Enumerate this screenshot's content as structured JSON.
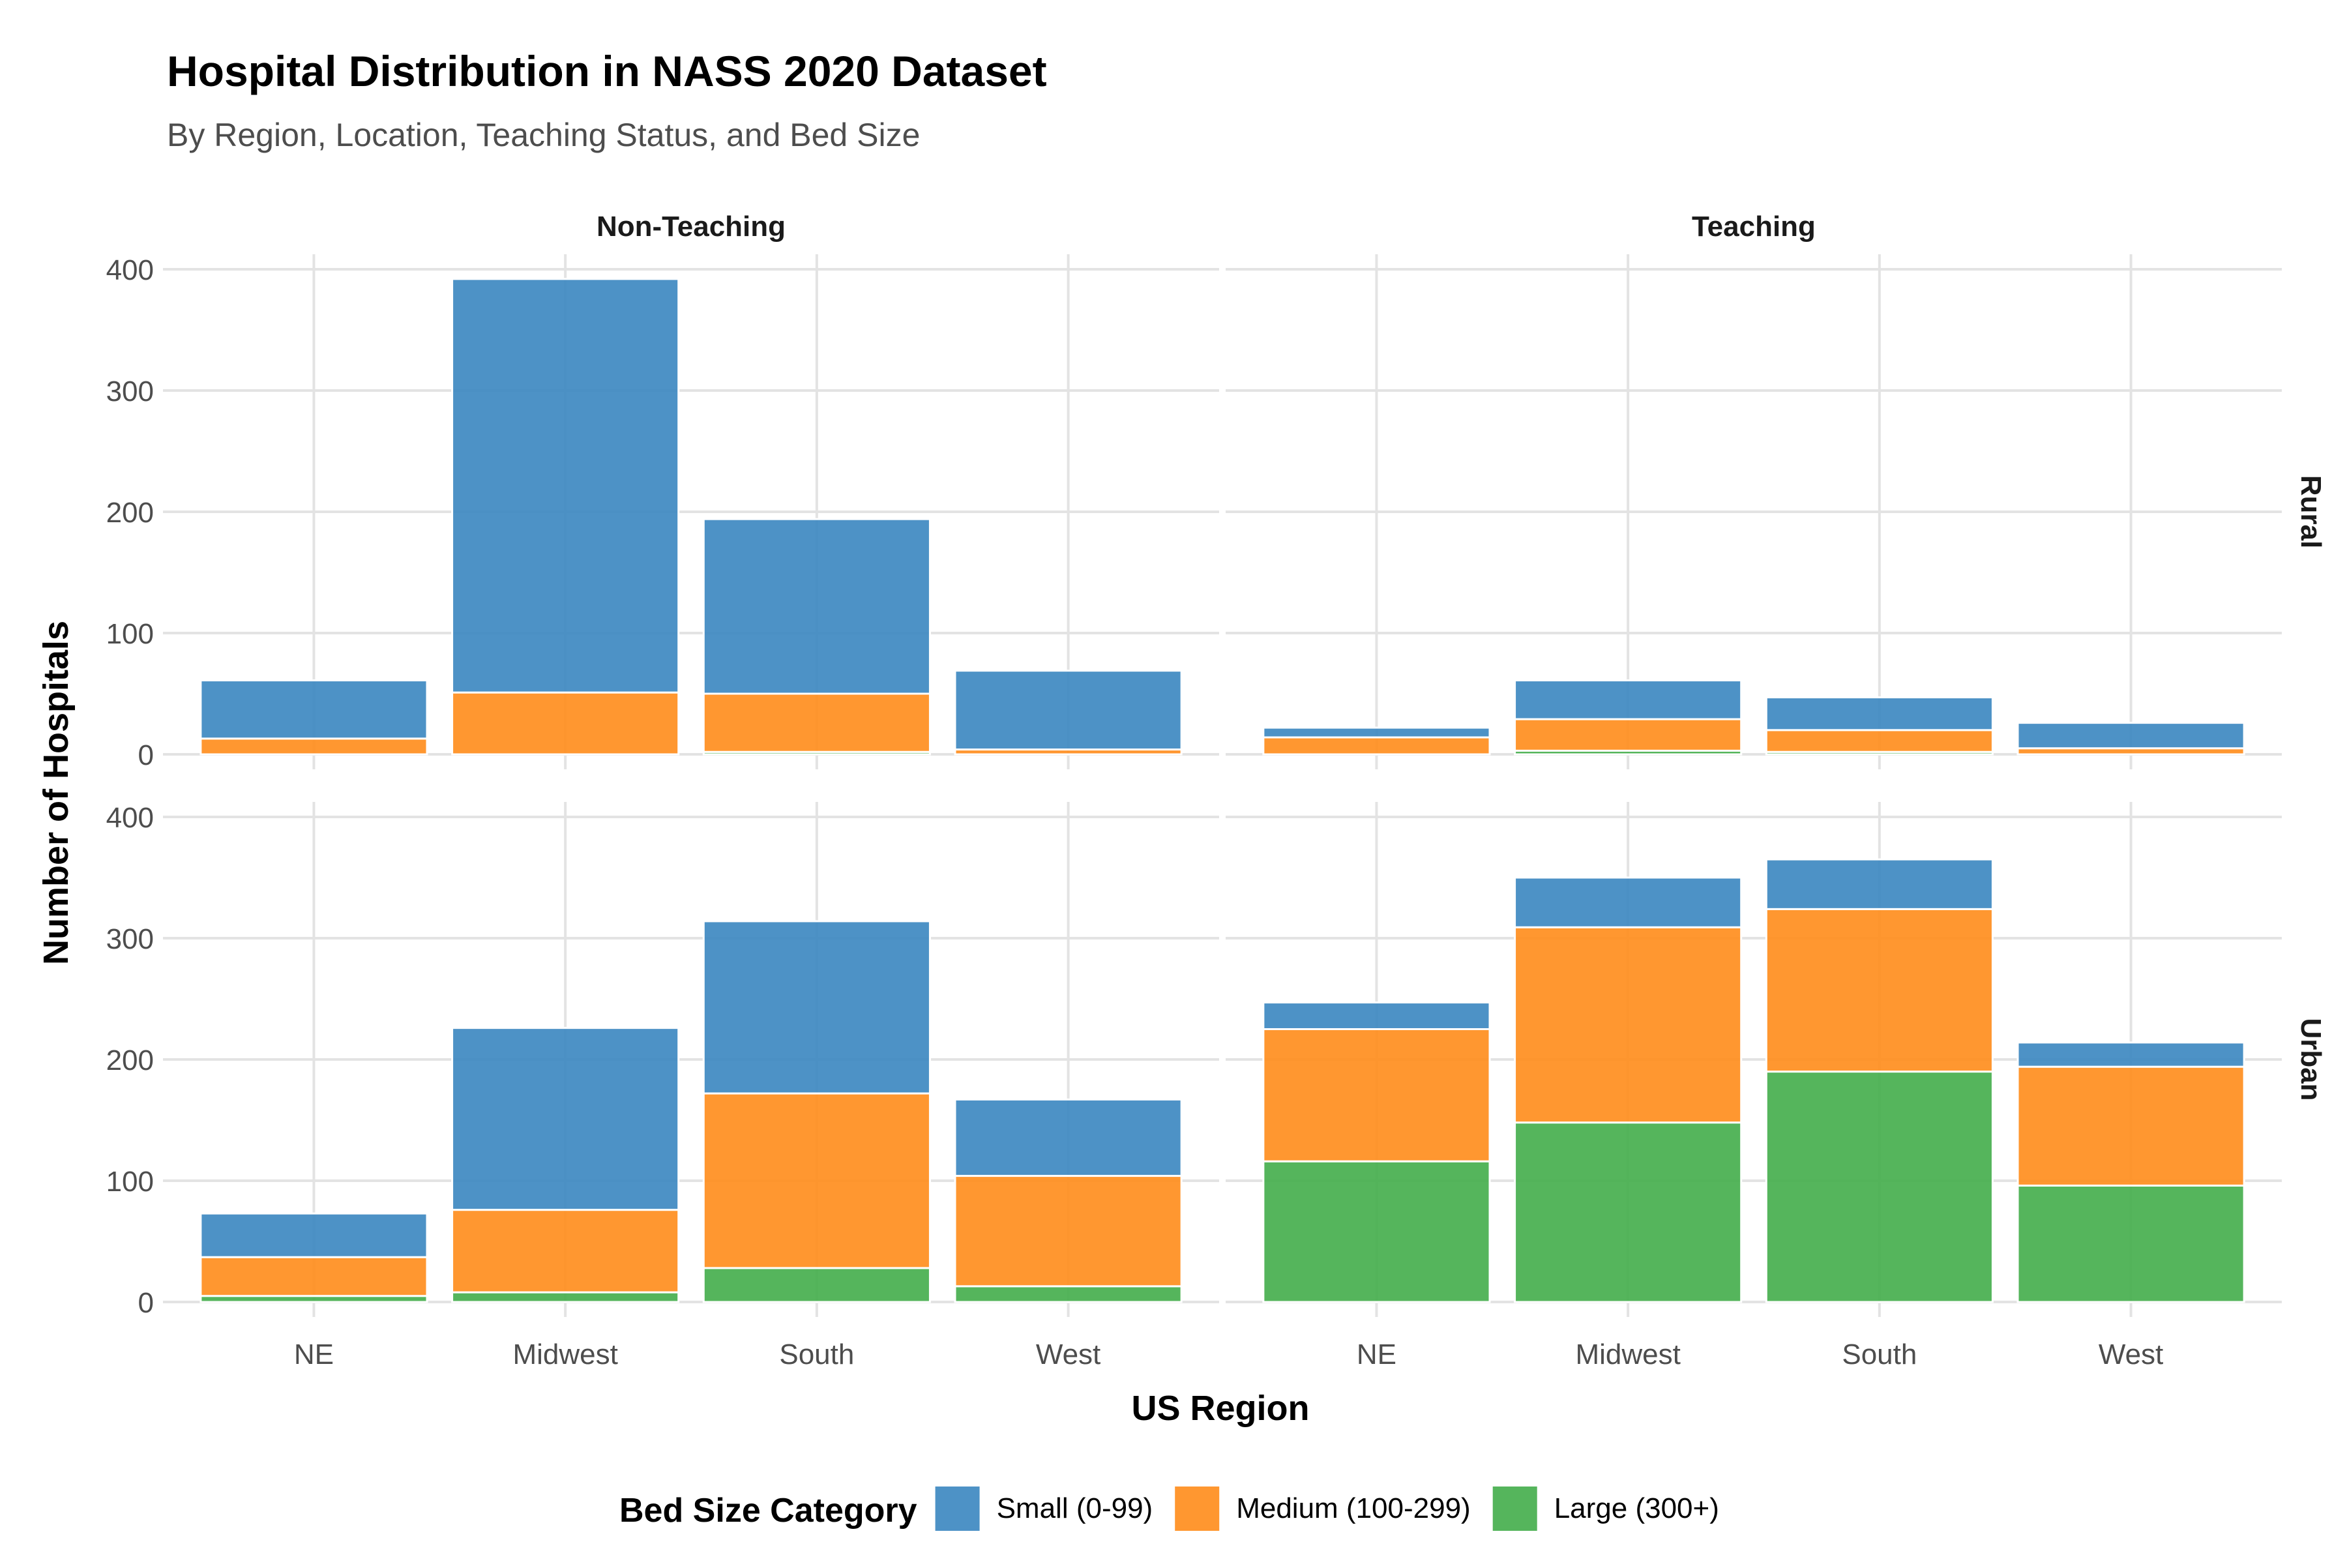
{
  "chart_data": {
    "type": "bar",
    "stacked": true,
    "title": "Hospital Distribution in NASS 2020 Dataset",
    "subtitle": "By Region, Location, Teaching Status, and Bed Size",
    "xlabel": "US Region",
    "ylabel": "Number of Hospitals",
    "categories": [
      "NE",
      "Midwest",
      "South",
      "West"
    ],
    "ylim": [
      0,
      400
    ],
    "yticks": [
      0,
      100,
      200,
      300,
      400
    ],
    "grid": true,
    "legend": {
      "title": "Bed Size Category",
      "position": "bottom",
      "entries": [
        "Small (0-99)",
        "Medium (100-299)",
        "Large (300+)"
      ]
    },
    "colors": {
      "Small (0-99)": "#3a86c0",
      "Medium (100-299)": "#ff8c1a",
      "Large (300+)": "#43ad4a"
    },
    "facet_columns": [
      "Non-Teaching",
      "Teaching"
    ],
    "facet_rows": [
      "Rural",
      "Urban"
    ],
    "panels": [
      {
        "column": "Non-Teaching",
        "row": "Rural",
        "series": [
          {
            "name": "Large (300+)",
            "values": [
              0,
              0,
              2,
              0
            ]
          },
          {
            "name": "Medium (100-299)",
            "values": [
              13,
              51,
              48,
              4
            ]
          },
          {
            "name": "Small (0-99)",
            "values": [
              48,
              341,
              144,
              65
            ]
          }
        ]
      },
      {
        "column": "Teaching",
        "row": "Rural",
        "series": [
          {
            "name": "Large (300+)",
            "values": [
              0,
              3,
              2,
              0
            ]
          },
          {
            "name": "Medium (100-299)",
            "values": [
              14,
              26,
              18,
              5
            ]
          },
          {
            "name": "Small (0-99)",
            "values": [
              8,
              32,
              27,
              21
            ]
          }
        ]
      },
      {
        "column": "Non-Teaching",
        "row": "Urban",
        "series": [
          {
            "name": "Large (300+)",
            "values": [
              5,
              8,
              28,
              13
            ]
          },
          {
            "name": "Medium (100-299)",
            "values": [
              32,
              68,
              144,
              91
            ]
          },
          {
            "name": "Small (0-99)",
            "values": [
              36,
              150,
              142,
              63
            ]
          }
        ]
      },
      {
        "column": "Teaching",
        "row": "Urban",
        "series": [
          {
            "name": "Large (300+)",
            "values": [
              116,
              148,
              190,
              96
            ]
          },
          {
            "name": "Medium (100-299)",
            "values": [
              109,
              161,
              134,
              98
            ]
          },
          {
            "name": "Small (0-99)",
            "values": [
              22,
              41,
              41,
              20
            ]
          }
        ]
      }
    ]
  }
}
